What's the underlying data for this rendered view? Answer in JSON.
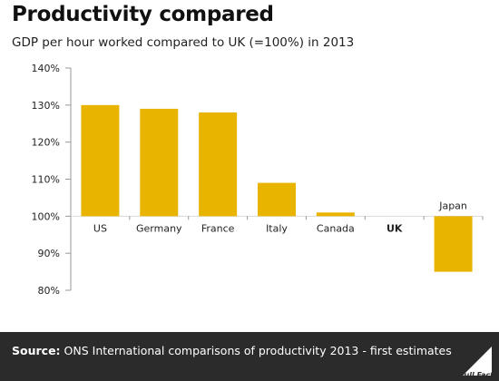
{
  "header": {
    "title": "Productivity compared",
    "subtitle": "GDP per hour worked compared to UK (=100%) in 2013"
  },
  "footer": {
    "source_prefix": "Source:",
    "source_text": "ONS International comparisons of productivity 2013 - first estimates",
    "logo_text": "Full Fact"
  },
  "colors": {
    "bar": "#e8b400",
    "footer_bg": "#2b2b2b",
    "gridline": "#d9d9d9"
  },
  "chart_data": {
    "type": "bar",
    "title": "Productivity compared",
    "subtitle": "GDP per hour worked compared to UK (=100%) in 2013",
    "categories": [
      "US",
      "Germany",
      "France",
      "Italy",
      "Canada",
      "UK",
      "Japan"
    ],
    "values": [
      130,
      129,
      128,
      109,
      101,
      100,
      85
    ],
    "baseline": 100,
    "ylim": [
      80,
      140
    ],
    "yticks": [
      80,
      90,
      100,
      110,
      120,
      130,
      140
    ],
    "ytick_labels": [
      "80%",
      "90%",
      "100%",
      "110%",
      "120%",
      "130%",
      "140%"
    ],
    "highlight_category": "UK",
    "xlabel": "",
    "ylabel": "",
    "grid": true
  }
}
